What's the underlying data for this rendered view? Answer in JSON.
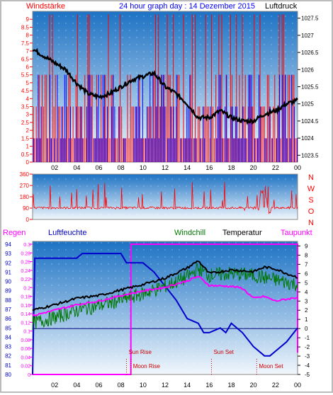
{
  "header": {
    "left_label": "Windstärke",
    "title": "24 hour graph day : 14 Dezember 2015",
    "right_label": "Luftdruck"
  },
  "colors": {
    "bg_top": "#1c72c4",
    "bg_bottom": "#eaf3fb",
    "wind_speed": "#ff0000",
    "wind_gust": "#0000ff",
    "pressure": "#000000",
    "direction": "#ff0000",
    "humidity": "#0000cc",
    "windchill": "#007700",
    "temperature": "#000000",
    "dewpoint": "#ff00ff",
    "rain": "#ff00ff"
  },
  "chart_data": [
    {
      "type": "line",
      "name": "wind-pressure",
      "xlabel": "",
      "ylabel_left": "Windstärke",
      "ylabel_right": "Luftdruck",
      "x_ticks": [
        "02",
        "04",
        "06",
        "08",
        "10",
        "12",
        "14",
        "16",
        "18",
        "20",
        "22",
        "00"
      ],
      "y_left_ticks": [
        "0",
        "0.5",
        "1",
        "1.5",
        "2",
        "2.5",
        "3",
        "3.5",
        "4",
        "4.5",
        "5",
        "5.5",
        "6",
        "6.5",
        "7",
        "7.5",
        "8",
        "8.5",
        "9"
      ],
      "y_left_range": [
        0,
        9.5
      ],
      "y_right_ticks": [
        "1023.5",
        "1024",
        "1024.5",
        "1025",
        "1025.5",
        "1026",
        "1026.5",
        "1027",
        "1027.5"
      ],
      "y_right_range": [
        1023.3,
        1027.7
      ],
      "series": [
        {
          "name": "Luftdruck",
          "axis": "right",
          "x": [
            0,
            1,
            2,
            3,
            4,
            5,
            6,
            7,
            8,
            9,
            10,
            11,
            12,
            13,
            14,
            15,
            16,
            17,
            18,
            19,
            20,
            21,
            22,
            23,
            24
          ],
          "values": [
            1026.6,
            1026.4,
            1026.2,
            1026.0,
            1025.6,
            1025.3,
            1025.2,
            1025.3,
            1025.5,
            1025.7,
            1025.8,
            1025.9,
            1025.5,
            1025.3,
            1025.0,
            1024.6,
            1024.6,
            1024.8,
            1024.6,
            1024.5,
            1024.5,
            1024.7,
            1024.8,
            1025.0,
            1025.1
          ]
        }
      ]
    },
    {
      "type": "line",
      "name": "wind-direction",
      "y_left_ticks": [
        "0",
        "90",
        "180",
        "270",
        "360"
      ],
      "y_range": [
        0,
        360
      ],
      "y_right_ticks": [
        "N",
        "W",
        "S",
        "O",
        "N"
      ],
      "x_ticks": [
        "02",
        "04",
        "06",
        "08",
        "10",
        "12",
        "14",
        "16",
        "18",
        "20",
        "22",
        "00"
      ]
    },
    {
      "type": "line",
      "name": "temperature-humidity",
      "legend": [
        "Regen",
        "Luftfeuchte",
        "Windchill",
        "Temperatur",
        "Taupunkt"
      ],
      "y_humidity_ticks": [
        "80",
        "81",
        "82",
        "83",
        "84",
        "85",
        "86",
        "87",
        "88",
        "89",
        "90",
        "91",
        "92",
        "93",
        "94"
      ],
      "y_humidity_range": [
        80,
        94
      ],
      "y_rain_ticks": [
        "0",
        "0.02",
        "0.04",
        "0.06",
        "0.08",
        "0.1",
        "0.12",
        "0.14",
        "0.16",
        "0.18",
        "0.2",
        "0.22",
        "0.24",
        "0.26",
        "0.28",
        "0.3"
      ],
      "y_rain_range": [
        0,
        0.3
      ],
      "y_temp_ticks": [
        "-5",
        "-4",
        "-3",
        "-2",
        "-1",
        "0",
        "1",
        "2",
        "3",
        "4",
        "5",
        "6",
        "7",
        "8",
        "9"
      ],
      "y_temp_range": [
        -5,
        9.5
      ],
      "x_ticks": [
        "02",
        "04",
        "06",
        "08",
        "10",
        "12",
        "14",
        "16",
        "18",
        "20",
        "22",
        "00"
      ],
      "annotations": [
        "Sun Rise",
        "Moon Rise",
        "Sun Set",
        "Moon Set"
      ],
      "series": [
        {
          "name": "Temperatur",
          "x": [
            0,
            2,
            4,
            6,
            8,
            10,
            12,
            14,
            15,
            16,
            18,
            20,
            21,
            22,
            23,
            24
          ],
          "values": [
            2.0,
            2.6,
            3.3,
            3.6,
            4.2,
            4.8,
            5.5,
            6.6,
            7.4,
            6.0,
            6.4,
            6.2,
            6.7,
            6.5,
            6.0,
            5.6
          ]
        },
        {
          "name": "Taupunkt",
          "x": [
            0,
            2,
            4,
            6,
            8,
            10,
            12,
            14,
            15,
            16,
            18,
            19,
            20,
            21,
            22,
            23,
            24
          ],
          "values": [
            1.4,
            2.0,
            2.6,
            3.0,
            3.6,
            4.1,
            4.5,
            5.2,
            5.7,
            4.7,
            4.6,
            4.4,
            3.3,
            3.5,
            3.0,
            3.2,
            3.4
          ]
        },
        {
          "name": "Windchill",
          "x": [
            0,
            2,
            4,
            6,
            8,
            10,
            12,
            14,
            15,
            16,
            18,
            20,
            22,
            24
          ],
          "values": [
            0.6,
            1.2,
            2.0,
            2.5,
            3.1,
            3.8,
            4.6,
            5.6,
            6.5,
            5.8,
            6.0,
            5.8,
            5.3,
            4.8
          ]
        },
        {
          "name": "Luftfeuchte",
          "x": [
            0,
            0.2,
            4,
            4.5,
            8,
            8.5,
            10,
            11,
            13,
            14,
            15,
            15.5,
            16,
            17,
            17.5,
            18,
            19,
            20,
            21,
            21.5,
            22,
            23,
            24
          ],
          "values": [
            80,
            92.5,
            92.5,
            93.0,
            93.0,
            92.0,
            92.0,
            91.0,
            88.0,
            86.0,
            85.5,
            84.5,
            84.5,
            85.0,
            84.5,
            85.5,
            84.5,
            83.0,
            82.0,
            82.0,
            82.5,
            83.5,
            85.0
          ]
        },
        {
          "name": "Regen",
          "x": [
            0,
            8.9,
            8.9,
            24,
            24
          ],
          "values": [
            0,
            0,
            0.3,
            0.3,
            0.05
          ]
        }
      ]
    }
  ]
}
